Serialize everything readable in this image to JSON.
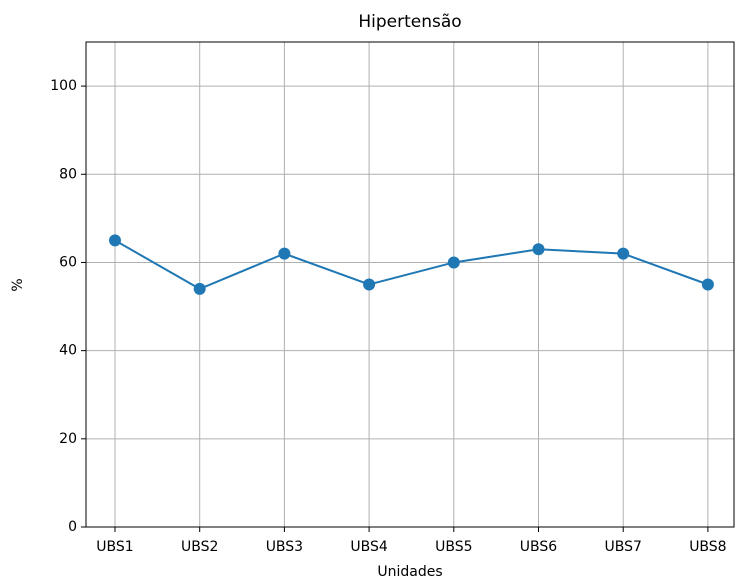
{
  "chart_data": {
    "type": "line",
    "title": "Hipertensão",
    "x_label": "Unidades",
    "y_label": "%",
    "categories": [
      "UBS1",
      "UBS2",
      "UBS3",
      "UBS4",
      "UBS5",
      "UBS6",
      "UBS7",
      "UBS8"
    ],
    "series": [
      {
        "color": "#1f77b4",
        "values": [
          65,
          54,
          62,
          55,
          60,
          63,
          62,
          55
        ]
      }
    ],
    "ylim": [
      0,
      110
    ],
    "yticks": [
      0,
      20,
      40,
      60,
      80,
      100
    ],
    "grid": true
  }
}
